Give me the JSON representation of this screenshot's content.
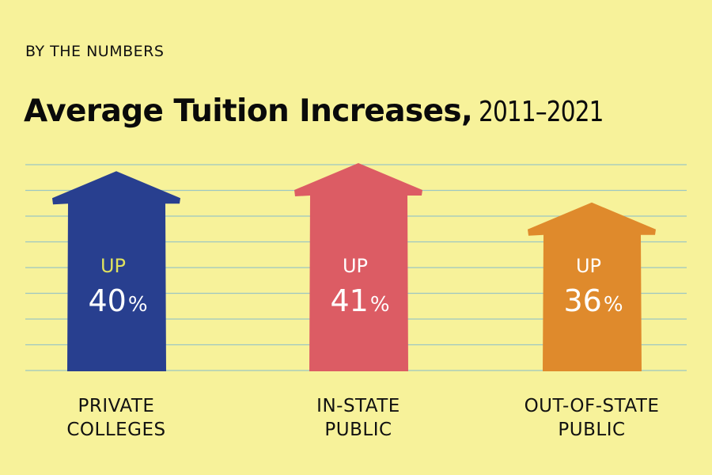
{
  "kicker": "BY THE NUMBERS",
  "title": "Average Tuition Increases,",
  "title_range": "2011–2021",
  "colors": {
    "background": "#f7f29a",
    "gridline": "#9cc7c2",
    "private": "#283f8f",
    "in_state": "#dc5c64",
    "out_of_state": "#df8a2c",
    "up_text_blue": "#dfe25e"
  },
  "chart_data": {
    "type": "bar",
    "categories": [
      "PRIVATE COLLEGES",
      "IN-STATE PUBLIC",
      "OUT-OF-STATE PUBLIC"
    ],
    "category_lines": [
      [
        "PRIVATE",
        "COLLEGES"
      ],
      [
        "IN-STATE",
        "PUBLIC"
      ],
      [
        "OUT-OF-STATE",
        "PUBLIC"
      ]
    ],
    "values": [
      40,
      41,
      36
    ],
    "value_prefix": "UP",
    "value_suffix": "%",
    "grid": true
  }
}
